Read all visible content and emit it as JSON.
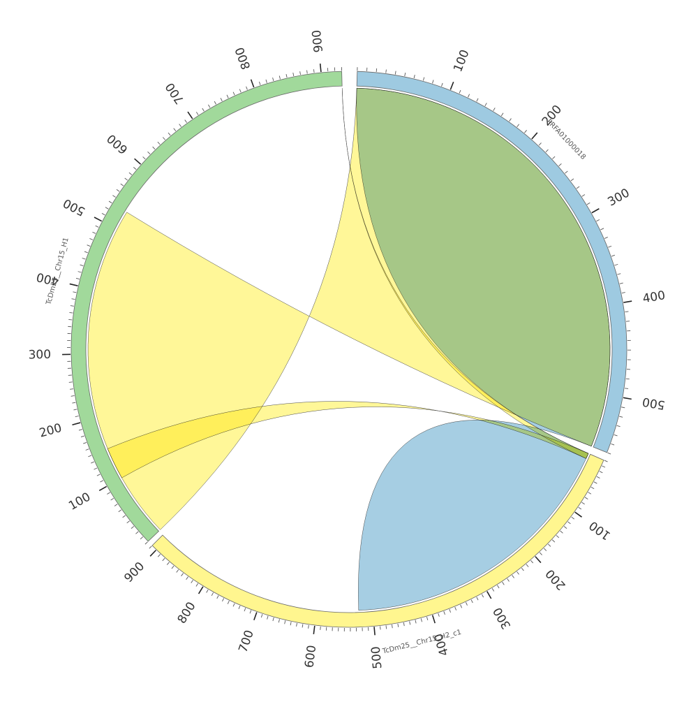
{
  "chart_data": {
    "type": "chord",
    "title": "",
    "segments": [
      {
        "name": "PRFA01000018",
        "length": 560,
        "color": "#9ecae1",
        "tick_labels": [
          "100",
          "200",
          "300",
          "400",
          "500"
        ]
      },
      {
        "name": "TcDm25__Chr15_H2_c1",
        "length": 910,
        "color": "#fff68f",
        "tick_labels": [
          "100",
          "200",
          "300",
          "400",
          "500",
          "600",
          "700",
          "800",
          "900"
        ]
      },
      {
        "name": "TcDm25__Chr15_H1",
        "length": 930,
        "color": "#a1d99b",
        "tick_labels": [
          "100",
          "200",
          "300",
          "400",
          "500",
          "600",
          "700",
          "800",
          "900"
        ]
      }
    ],
    "links": [
      {
        "source": "PRFA01000018",
        "source_range": [
          0,
          560
        ],
        "target": "TcDm25__Chr15_H2_c1",
        "target_range": [
          0,
          525
        ],
        "color": "#9ecae1"
      },
      {
        "source": "TcDm25__Chr15_H2_c1",
        "source_range": [
          0,
          10
        ],
        "target": "TcDm25__Chr15_H1",
        "target_range": [
          100,
          150
        ],
        "color": "#fff68f"
      },
      {
        "source": "TcDm25__Chr15_H2_c1",
        "source_range": [
          0,
          10
        ],
        "target": "TcDm25__Chr15_H1",
        "target_range": [
          930,
          930
        ],
        "color": "#fff68f"
      },
      {
        "source": "TcDm25__Chr15_H1",
        "source_range": [
          0,
          530
        ],
        "target": "PRFA01000018",
        "target_range": [
          0,
          560
        ],
        "color": "#fff68f"
      }
    ]
  }
}
